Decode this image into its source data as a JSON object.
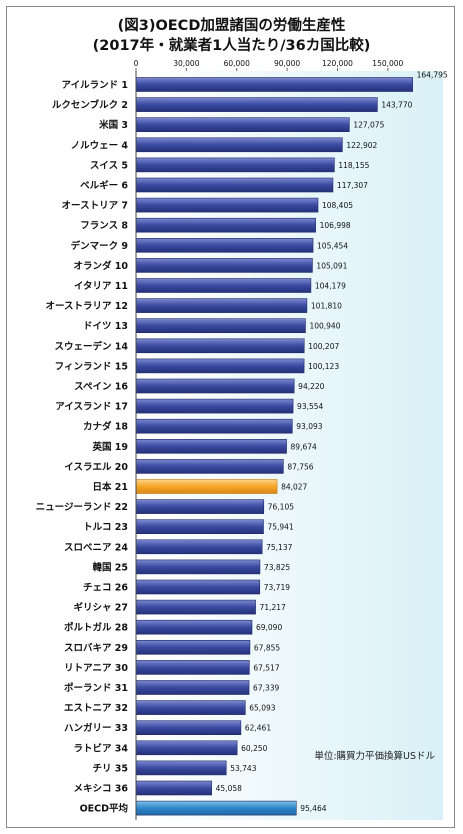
{
  "title_line1": "(図3)OECD加盟諸国の労働生産性",
  "title_line2": "(2017年・就業者1人当たり/36カ国比較)",
  "unit_note": "単位:購買力平価換算USドル",
  "colors": {
    "bar_default": "#3a4aa0",
    "bar_japan": "#f5a623",
    "bar_oecd": "#2e86c8",
    "plot_bg_right": "#dff3f8"
  },
  "chart_data": {
    "type": "bar",
    "orientation": "horizontal",
    "title": "(図3)OECD加盟諸国の労働生産性 (2017年・就業者1人当たり/36カ国比較)",
    "xlabel": "",
    "ylabel": "",
    "xlim": [
      0,
      165000
    ],
    "x_ticks": [
      0,
      30000,
      60000,
      90000,
      120000,
      150000
    ],
    "x_tick_labels": [
      "0",
      "30,000",
      "60,000",
      "90,000",
      "120,000",
      "150,000"
    ],
    "grid": false,
    "legend": "none",
    "categories": [
      {
        "name": "アイルランド",
        "rank": "1",
        "value": 164795,
        "value_label": "164,795"
      },
      {
        "name": "ルクセンブルク",
        "rank": "2",
        "value": 143770,
        "value_label": "143,770"
      },
      {
        "name": "米国",
        "rank": "3",
        "value": 127075,
        "value_label": "127,075"
      },
      {
        "name": "ノルウェー",
        "rank": "4",
        "value": 122902,
        "value_label": "122,902"
      },
      {
        "name": "スイス",
        "rank": "5",
        "value": 118155,
        "value_label": "118,155"
      },
      {
        "name": "ベルギー",
        "rank": "6",
        "value": 117307,
        "value_label": "117,307"
      },
      {
        "name": "オーストリア",
        "rank": "7",
        "value": 108405,
        "value_label": "108,405"
      },
      {
        "name": "フランス",
        "rank": "8",
        "value": 106998,
        "value_label": "106,998"
      },
      {
        "name": "デンマーク",
        "rank": "9",
        "value": 105454,
        "value_label": "105,454"
      },
      {
        "name": "オランダ",
        "rank": "10",
        "value": 105091,
        "value_label": "105,091"
      },
      {
        "name": "イタリア",
        "rank": "11",
        "value": 104179,
        "value_label": "104,179"
      },
      {
        "name": "オーストラリア",
        "rank": "12",
        "value": 101810,
        "value_label": "101,810"
      },
      {
        "name": "ドイツ",
        "rank": "13",
        "value": 100940,
        "value_label": "100,940"
      },
      {
        "name": "スウェーデン",
        "rank": "14",
        "value": 100207,
        "value_label": "100,207"
      },
      {
        "name": "フィンランド",
        "rank": "15",
        "value": 100123,
        "value_label": "100,123"
      },
      {
        "name": "スペイン",
        "rank": "16",
        "value": 94220,
        "value_label": "94,220"
      },
      {
        "name": "アイスランド",
        "rank": "17",
        "value": 93554,
        "value_label": "93,554"
      },
      {
        "name": "カナダ",
        "rank": "18",
        "value": 93093,
        "value_label": "93,093"
      },
      {
        "name": "英国",
        "rank": "19",
        "value": 89674,
        "value_label": "89,674"
      },
      {
        "name": "イスラエル",
        "rank": "20",
        "value": 87756,
        "value_label": "87,756"
      },
      {
        "name": "日本",
        "rank": "21",
        "value": 84027,
        "value_label": "84,027",
        "highlight": "japan"
      },
      {
        "name": "ニュージーランド",
        "rank": "22",
        "value": 76105,
        "value_label": "76,105"
      },
      {
        "name": "トルコ",
        "rank": "23",
        "value": 75941,
        "value_label": "75,941"
      },
      {
        "name": "スロベニア",
        "rank": "24",
        "value": 75137,
        "value_label": "75,137"
      },
      {
        "name": "韓国",
        "rank": "25",
        "value": 73825,
        "value_label": "73,825"
      },
      {
        "name": "チェコ",
        "rank": "26",
        "value": 73719,
        "value_label": "73,719"
      },
      {
        "name": "ギリシャ",
        "rank": "27",
        "value": 71217,
        "value_label": "71,217"
      },
      {
        "name": "ポルトガル",
        "rank": "28",
        "value": 69090,
        "value_label": "69,090"
      },
      {
        "name": "スロバキア",
        "rank": "29",
        "value": 67855,
        "value_label": "67,855"
      },
      {
        "name": "リトアニア",
        "rank": "30",
        "value": 67517,
        "value_label": "67,517"
      },
      {
        "name": "ポーランド",
        "rank": "31",
        "value": 67339,
        "value_label": "67,339"
      },
      {
        "name": "エストニア",
        "rank": "32",
        "value": 65093,
        "value_label": "65,093"
      },
      {
        "name": "ハンガリー",
        "rank": "33",
        "value": 62461,
        "value_label": "62,461"
      },
      {
        "name": "ラトビア",
        "rank": "34",
        "value": 60250,
        "value_label": "60,250"
      },
      {
        "name": "チリ",
        "rank": "35",
        "value": 53743,
        "value_label": "53,743"
      },
      {
        "name": "メキシコ",
        "rank": "36",
        "value": 45058,
        "value_label": "45,058"
      },
      {
        "name": "OECD平均",
        "rank": "",
        "value": 95464,
        "value_label": "95,464",
        "highlight": "oecd"
      }
    ]
  }
}
